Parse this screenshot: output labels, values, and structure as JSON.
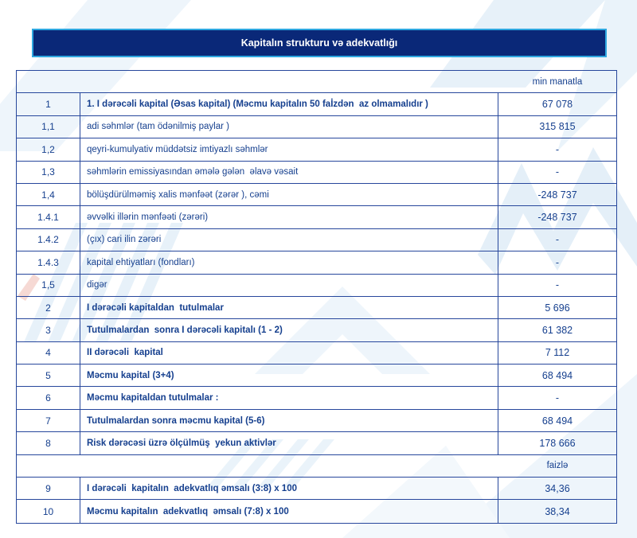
{
  "title": "Kapitalın strukturu və adekvatlığı",
  "colors": {
    "banner_bg": "#0a2878",
    "banner_border": "#2ea7e0",
    "table_border": "#27479c",
    "text": "#153f8e",
    "watermark_light": "#e9f2fa",
    "watermark_accent": "#f2c9c2"
  },
  "table": {
    "rows": [
      {
        "type": "unit",
        "label": "min manatla"
      },
      {
        "type": "data",
        "num": "1",
        "label": "1. I dərəcəli kapital (Əsas kapital) (Məcmu kapitalın 50 faİzdən  az olmamalıdır )",
        "value": "67 078",
        "bold": true
      },
      {
        "type": "data",
        "num": "1,1",
        "label": "adi səhmlər (tam ödənilmiş paylar )",
        "value": "315 815",
        "bold": false
      },
      {
        "type": "data",
        "num": "1,2",
        "label": "qeyri-kumulyativ müddətsiz imtiyazlı səhmlər",
        "value": "-",
        "bold": false
      },
      {
        "type": "data",
        "num": "1,3",
        "label": "səhmlərin emissiyasından əmələ gələn  əlavə vəsait",
        "value": "-",
        "bold": false
      },
      {
        "type": "data",
        "num": "1,4",
        "label": "bölüşdürülməmiş xalis mənfəət (zərər ), cəmi",
        "value": "-248 737",
        "bold": false
      },
      {
        "type": "data",
        "num": "1.4.1",
        "label": "əvvəlki illərin mənfəəti (zərəri)",
        "value": "-248 737",
        "bold": false
      },
      {
        "type": "data",
        "num": "1.4.2",
        "label": "(çıx) cari ilin zərəri",
        "value": "-",
        "bold": false
      },
      {
        "type": "data",
        "num": "1.4.3",
        "label": "kapital ehtiyatları (fondları)",
        "value": "-",
        "bold": false
      },
      {
        "type": "data",
        "num": "1,5",
        "label": "digər",
        "value": "-",
        "bold": false
      },
      {
        "type": "data",
        "num": "2",
        "label": "I dərəcəli kapitaldan  tutulmalar",
        "value": "5 696",
        "bold": true
      },
      {
        "type": "data",
        "num": "3",
        "label": "Tutulmalardan  sonra I dərəcəli kapitalı (1 - 2)",
        "value": "61 382",
        "bold": true
      },
      {
        "type": "data",
        "num": "4",
        "label": "II dərəcəli  kapital",
        "value": "7 112",
        "bold": true
      },
      {
        "type": "data",
        "num": "5",
        "label": "Məcmu kapital (3+4)",
        "value": "68 494",
        "bold": true
      },
      {
        "type": "data",
        "num": "6",
        "label": "Məcmu kapitaldan tutulmalar :",
        "value": "-",
        "bold": true
      },
      {
        "type": "data",
        "num": "7",
        "label": "Tutulmalardan sonra məcmu kapital (5-6)",
        "value": "68 494",
        "bold": true
      },
      {
        "type": "data",
        "num": "8",
        "label": "Risk dərəcəsi üzrə ölçülmüş  yekun aktivlər",
        "value": "178 666",
        "bold": true
      },
      {
        "type": "unit",
        "label": "faizlə"
      },
      {
        "type": "data",
        "num": "9",
        "label": "I dərəcəli  kapitalın  adekvatlıq əmsalı (3:8) x 100",
        "value": "34,36",
        "bold": true
      },
      {
        "type": "data",
        "num": "10",
        "label": "Məcmu kapitalın  adekvatlıq  əmsalı (7:8) x 100",
        "value": "38,34",
        "bold": true
      }
    ]
  }
}
